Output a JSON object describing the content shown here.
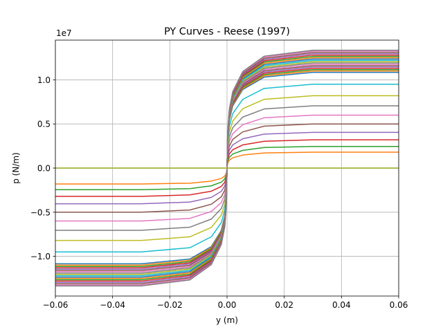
{
  "chart_data": {
    "type": "line",
    "title": "PY Curves - Reese (1997)",
    "xlabel": "y (m)",
    "ylabel": "p (N/m)",
    "offset_text": "1e7",
    "xlim": [
      -0.06,
      0.06
    ],
    "ylim": [
      -1.45,
      1.45
    ],
    "xticks": [
      -0.06,
      -0.04,
      -0.02,
      0.0,
      0.02,
      0.04,
      0.06
    ],
    "xtick_labels": [
      "−0.06",
      "−0.04",
      "−0.02",
      "0.00",
      "0.02",
      "0.04",
      "0.06"
    ],
    "yticks": [
      -1.0,
      -0.5,
      0.0,
      0.5,
      1.0
    ],
    "ytick_labels": [
      "−1.0",
      "−0.5",
      "0.0",
      "0.5",
      "1.0"
    ],
    "grid": true,
    "legend": false,
    "x": [
      -0.06,
      -0.03,
      -0.013,
      -0.0055,
      -0.002,
      -0.0008,
      -0.0002,
      0.0,
      0.0002,
      0.0008,
      0.002,
      0.0055,
      0.013,
      0.03,
      0.06
    ],
    "shape": [
      -1.0,
      -1.0,
      -0.95,
      -0.82,
      -0.65,
      -0.5,
      -0.3,
      0.0,
      0.3,
      0.5,
      0.65,
      0.82,
      0.95,
      1.0,
      1.0
    ],
    "color_cycle": [
      "#1f77b4",
      "#ff7f0e",
      "#2ca02c",
      "#d62728",
      "#9467bd",
      "#8c564b",
      "#e377c2",
      "#7f7f7f",
      "#bcbd22",
      "#17becf"
    ],
    "series_pmax": [
      0.0,
      0.18,
      0.245,
      0.32,
      0.405,
      0.5,
      0.6,
      0.705,
      0.82,
      0.95,
      1.085,
      1.1,
      1.115,
      1.13,
      1.145,
      1.16,
      1.175,
      1.19,
      1.205,
      1.22,
      1.235,
      1.25,
      1.265,
      1.28,
      1.295,
      1.31,
      1.325,
      1.335,
      0.0
    ]
  }
}
